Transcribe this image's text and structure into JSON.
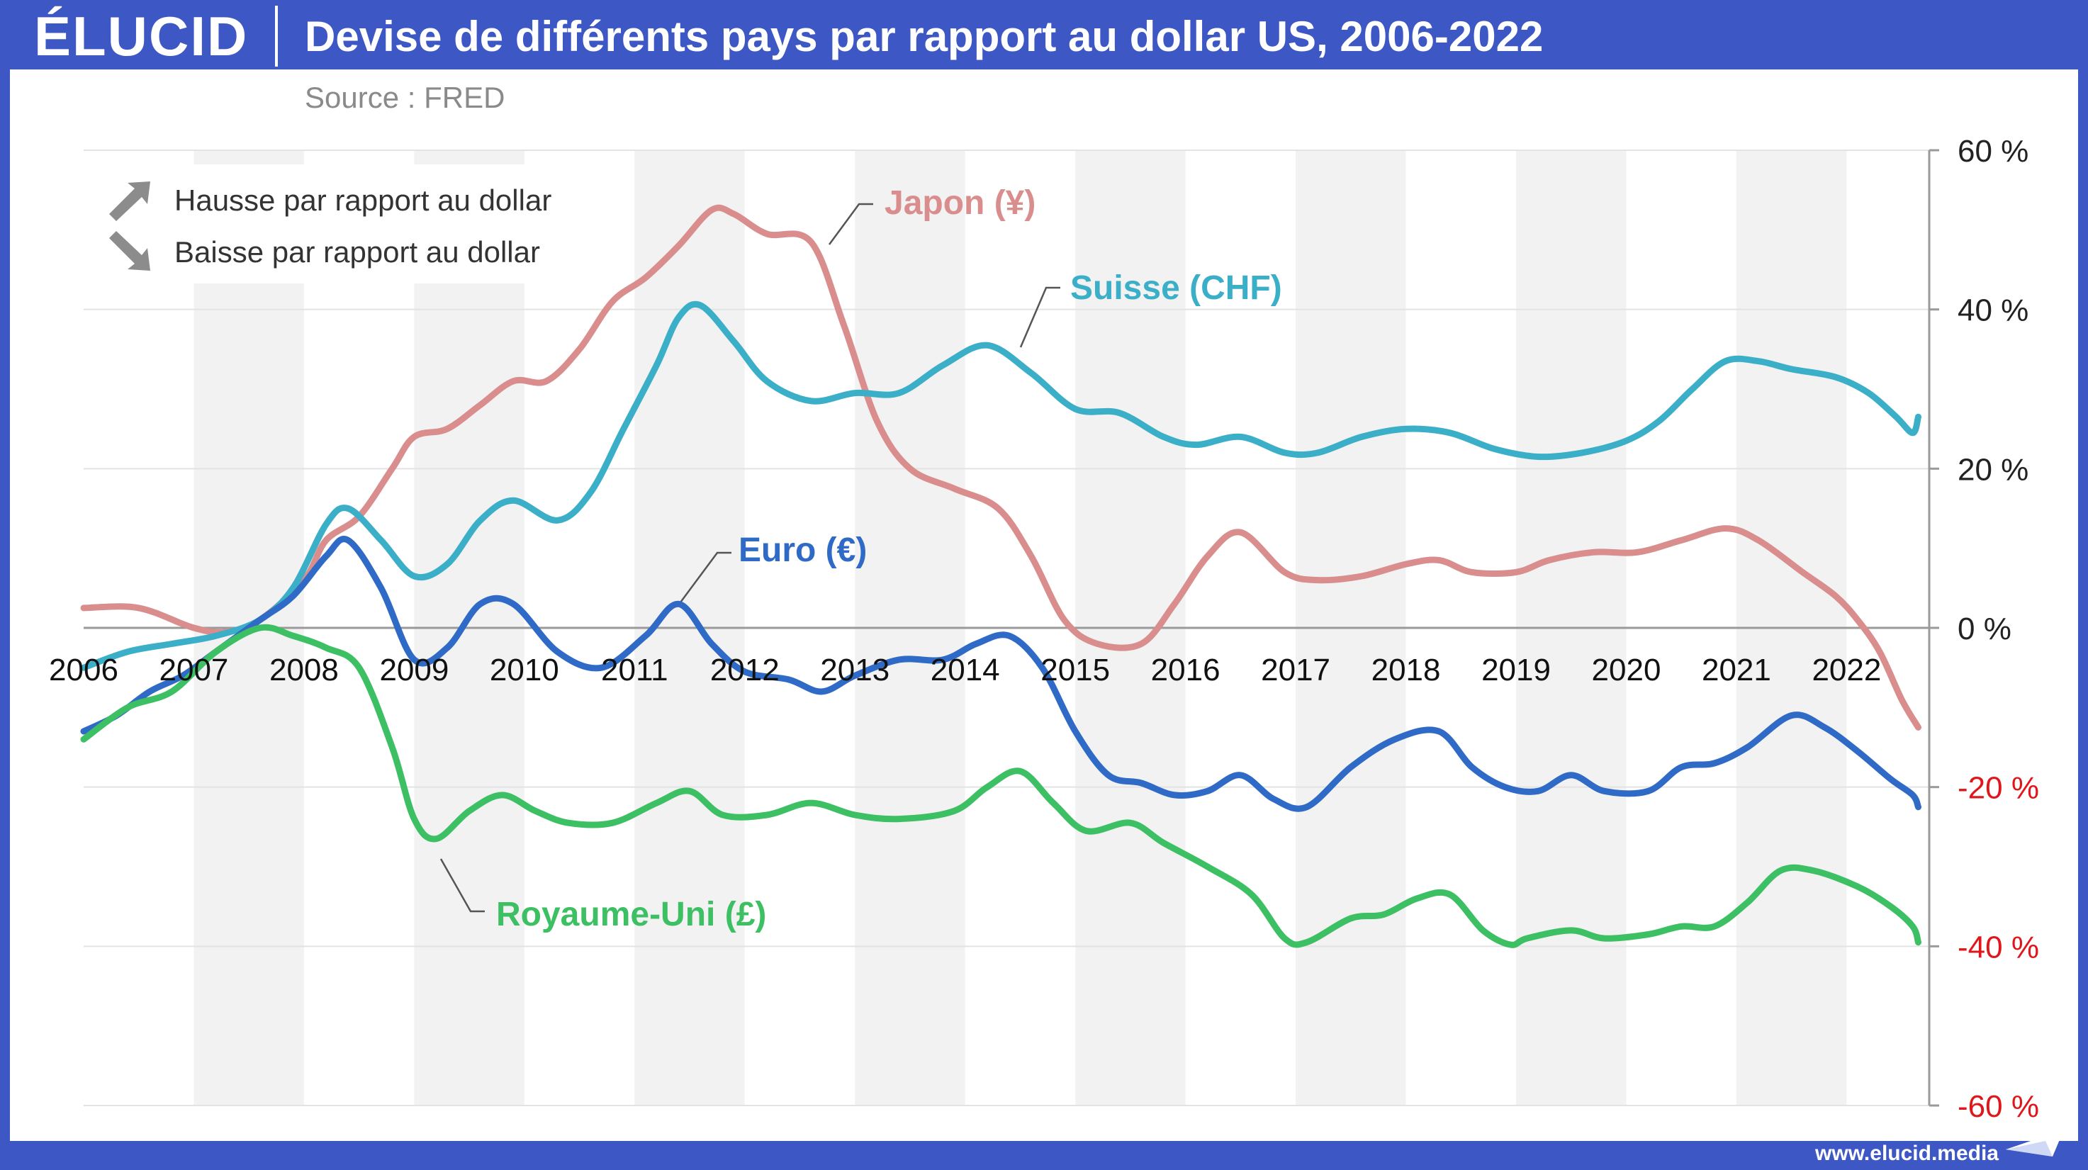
{
  "header": {
    "logo": "ÉLUCID",
    "title": "Devise de différents pays par rapport au dollar US, 2006-2022",
    "source": "Source : FRED"
  },
  "footer": {
    "url": "www.elucid.media"
  },
  "legend": {
    "up_label": "Hausse par rapport au dollar",
    "down_label": "Baisse par rapport au dollar",
    "up_icon": "arrow-up-right-icon",
    "down_icon": "arrow-down-right-icon"
  },
  "chart_data": {
    "type": "line",
    "title": "Devise de différents pays par rapport au dollar US, 2006-2022",
    "xlim": [
      2006,
      2022.75
    ],
    "ylim": [
      -60,
      60
    ],
    "x_ticks": [
      2006,
      2007,
      2008,
      2009,
      2010,
      2011,
      2012,
      2013,
      2014,
      2015,
      2016,
      2017,
      2018,
      2019,
      2020,
      2021,
      2022
    ],
    "x_tick_labels": [
      "2006",
      "2007",
      "2008",
      "2009",
      "2010",
      "2011",
      "2012",
      "2013",
      "2014",
      "2015",
      "2016",
      "2017",
      "2018",
      "2019",
      "2020",
      "2021",
      "2022"
    ],
    "y_ticks": [
      60,
      40,
      20,
      0,
      -20,
      -40,
      -60
    ],
    "y_tick_labels": [
      "60 %",
      "40 %",
      "20 %",
      "0 %",
      "-20 %",
      "-40 %",
      "-60 %"
    ],
    "y_axis_side": "right",
    "alternating_year_bands": true,
    "grid": true,
    "series": [
      {
        "name": "Japon (¥)",
        "color": "#d98d8d",
        "points": [
          [
            2006,
            2.5
          ],
          [
            2006.5,
            2.5
          ],
          [
            2007,
            0
          ],
          [
            2007.3,
            -0.5
          ],
          [
            2007.6,
            1
          ],
          [
            2008,
            6
          ],
          [
            2008.2,
            11
          ],
          [
            2008.5,
            14
          ],
          [
            2008.8,
            20
          ],
          [
            2009,
            24
          ],
          [
            2009.3,
            25
          ],
          [
            2009.6,
            28
          ],
          [
            2009.9,
            31
          ],
          [
            2010.2,
            31
          ],
          [
            2010.5,
            35
          ],
          [
            2010.8,
            41
          ],
          [
            2011.1,
            44
          ],
          [
            2011.4,
            48
          ],
          [
            2011.7,
            52.5
          ],
          [
            2011.9,
            52
          ],
          [
            2012.2,
            49.5
          ],
          [
            2012.6,
            48.5
          ],
          [
            2012.9,
            38
          ],
          [
            2013.2,
            26
          ],
          [
            2013.5,
            20
          ],
          [
            2013.9,
            17.5
          ],
          [
            2014.3,
            15
          ],
          [
            2014.6,
            9
          ],
          [
            2014.9,
            1
          ],
          [
            2015.2,
            -2
          ],
          [
            2015.6,
            -2
          ],
          [
            2015.9,
            3
          ],
          [
            2016.2,
            9
          ],
          [
            2016.5,
            12
          ],
          [
            2016.9,
            7
          ],
          [
            2017.2,
            6
          ],
          [
            2017.6,
            6.5
          ],
          [
            2018,
            8
          ],
          [
            2018.3,
            8.5
          ],
          [
            2018.6,
            7
          ],
          [
            2019,
            7
          ],
          [
            2019.3,
            8.5
          ],
          [
            2019.7,
            9.5
          ],
          [
            2020.1,
            9.5
          ],
          [
            2020.5,
            11
          ],
          [
            2020.9,
            12.5
          ],
          [
            2021.2,
            11
          ],
          [
            2021.6,
            7
          ],
          [
            2021.9,
            4
          ],
          [
            2022.1,
            1
          ],
          [
            2022.3,
            -3
          ],
          [
            2022.5,
            -9
          ],
          [
            2022.65,
            -12.5
          ]
        ]
      },
      {
        "name": "Suisse (CHF)",
        "color": "#3cafc8",
        "points": [
          [
            2006,
            -5
          ],
          [
            2006.4,
            -3
          ],
          [
            2006.8,
            -2
          ],
          [
            2007.2,
            -1
          ],
          [
            2007.6,
            1
          ],
          [
            2007.9,
            5
          ],
          [
            2008.2,
            13
          ],
          [
            2008.4,
            15
          ],
          [
            2008.7,
            11
          ],
          [
            2009,
            6.5
          ],
          [
            2009.3,
            8
          ],
          [
            2009.6,
            13.5
          ],
          [
            2009.9,
            16
          ],
          [
            2010.3,
            13.5
          ],
          [
            2010.6,
            17
          ],
          [
            2010.9,
            25
          ],
          [
            2011.2,
            33
          ],
          [
            2011.4,
            39
          ],
          [
            2011.6,
            40.5
          ],
          [
            2011.9,
            36
          ],
          [
            2012.2,
            31
          ],
          [
            2012.6,
            28.5
          ],
          [
            2013,
            29.5
          ],
          [
            2013.4,
            29.5
          ],
          [
            2013.8,
            33
          ],
          [
            2014.2,
            35.5
          ],
          [
            2014.6,
            32
          ],
          [
            2015,
            27.5
          ],
          [
            2015.4,
            27
          ],
          [
            2015.8,
            24
          ],
          [
            2016.1,
            23
          ],
          [
            2016.5,
            24
          ],
          [
            2016.9,
            22
          ],
          [
            2017.2,
            22
          ],
          [
            2017.6,
            24
          ],
          [
            2018,
            25
          ],
          [
            2018.4,
            24.5
          ],
          [
            2018.8,
            22.5
          ],
          [
            2019.2,
            21.5
          ],
          [
            2019.6,
            22
          ],
          [
            2020,
            23.5
          ],
          [
            2020.3,
            26
          ],
          [
            2020.6,
            30
          ],
          [
            2020.9,
            33.5
          ],
          [
            2021.2,
            33.5
          ],
          [
            2021.5,
            32.5
          ],
          [
            2021.9,
            31.5
          ],
          [
            2022.2,
            29.5
          ],
          [
            2022.45,
            26.5
          ],
          [
            2022.6,
            24.5
          ],
          [
            2022.65,
            26.5
          ]
        ]
      },
      {
        "name": "Euro (€)",
        "color": "#2f6bc6",
        "points": [
          [
            2006,
            -13
          ],
          [
            2006.3,
            -11
          ],
          [
            2006.6,
            -8
          ],
          [
            2006.9,
            -6
          ],
          [
            2007.2,
            -3
          ],
          [
            2007.6,
            1
          ],
          [
            2007.9,
            4
          ],
          [
            2008.2,
            9
          ],
          [
            2008.4,
            11
          ],
          [
            2008.7,
            5
          ],
          [
            2009,
            -4
          ],
          [
            2009.3,
            -2.5
          ],
          [
            2009.6,
            3
          ],
          [
            2009.9,
            3
          ],
          [
            2010.3,
            -3
          ],
          [
            2010.7,
            -5
          ],
          [
            2011.1,
            -1
          ],
          [
            2011.4,
            3
          ],
          [
            2011.7,
            -2
          ],
          [
            2012,
            -5.5
          ],
          [
            2012.4,
            -6.5
          ],
          [
            2012.7,
            -8
          ],
          [
            2013,
            -6
          ],
          [
            2013.4,
            -4
          ],
          [
            2013.8,
            -4
          ],
          [
            2014.1,
            -2
          ],
          [
            2014.4,
            -1
          ],
          [
            2014.7,
            -5
          ],
          [
            2015,
            -13
          ],
          [
            2015.3,
            -18.5
          ],
          [
            2015.6,
            -19.5
          ],
          [
            2015.9,
            -21
          ],
          [
            2016.2,
            -20.5
          ],
          [
            2016.5,
            -18.5
          ],
          [
            2016.8,
            -21.5
          ],
          [
            2017.1,
            -22.5
          ],
          [
            2017.5,
            -17.5
          ],
          [
            2017.9,
            -14
          ],
          [
            2018.3,
            -13
          ],
          [
            2018.6,
            -17.5
          ],
          [
            2018.9,
            -20
          ],
          [
            2019.2,
            -20.5
          ],
          [
            2019.5,
            -18.5
          ],
          [
            2019.8,
            -20.5
          ],
          [
            2020.2,
            -20.5
          ],
          [
            2020.5,
            -17.5
          ],
          [
            2020.8,
            -17
          ],
          [
            2021.1,
            -15
          ],
          [
            2021.5,
            -11
          ],
          [
            2021.8,
            -12.5
          ],
          [
            2022.1,
            -15.5
          ],
          [
            2022.4,
            -19
          ],
          [
            2022.6,
            -21
          ],
          [
            2022.65,
            -22.5
          ]
        ]
      },
      {
        "name": "Royaume-Uni (£)",
        "color": "#3dbf63",
        "points": [
          [
            2006,
            -14
          ],
          [
            2006.4,
            -10
          ],
          [
            2006.8,
            -8
          ],
          [
            2007.2,
            -3
          ],
          [
            2007.6,
            0
          ],
          [
            2007.9,
            -1
          ],
          [
            2008.2,
            -2.5
          ],
          [
            2008.5,
            -5
          ],
          [
            2008.8,
            -15
          ],
          [
            2009,
            -24
          ],
          [
            2009.2,
            -26.5
          ],
          [
            2009.5,
            -23
          ],
          [
            2009.8,
            -21
          ],
          [
            2010.1,
            -23
          ],
          [
            2010.4,
            -24.5
          ],
          [
            2010.8,
            -24.5
          ],
          [
            2011.2,
            -22
          ],
          [
            2011.5,
            -20.5
          ],
          [
            2011.8,
            -23.5
          ],
          [
            2012.2,
            -23.5
          ],
          [
            2012.6,
            -22
          ],
          [
            2013,
            -23.5
          ],
          [
            2013.4,
            -24
          ],
          [
            2013.9,
            -23
          ],
          [
            2014.2,
            -20
          ],
          [
            2014.5,
            -18
          ],
          [
            2014.8,
            -22
          ],
          [
            2015.1,
            -25.5
          ],
          [
            2015.5,
            -24.5
          ],
          [
            2015.8,
            -27
          ],
          [
            2016.2,
            -30
          ],
          [
            2016.6,
            -33.5
          ],
          [
            2016.9,
            -39
          ],
          [
            2017.1,
            -39.5
          ],
          [
            2017.5,
            -36.5
          ],
          [
            2017.8,
            -36
          ],
          [
            2018.1,
            -34
          ],
          [
            2018.4,
            -33.5
          ],
          [
            2018.7,
            -38
          ],
          [
            2018.95,
            -39.8
          ],
          [
            2019.1,
            -39
          ],
          [
            2019.5,
            -38
          ],
          [
            2019.8,
            -39
          ],
          [
            2020.2,
            -38.5
          ],
          [
            2020.5,
            -37.5
          ],
          [
            2020.8,
            -37.5
          ],
          [
            2021.1,
            -34.5
          ],
          [
            2021.4,
            -30.5
          ],
          [
            2021.7,
            -30.5
          ],
          [
            2022.1,
            -32.5
          ],
          [
            2022.4,
            -35
          ],
          [
            2022.6,
            -37.5
          ],
          [
            2022.65,
            -39.5
          ]
        ]
      }
    ],
    "annotations": [
      {
        "series": "Japon (¥)",
        "text": "Japon (¥)"
      },
      {
        "series": "Suisse (CHF)",
        "text": "Suisse (CHF)"
      },
      {
        "series": "Euro (€)",
        "text": "Euro (€)"
      },
      {
        "series": "Royaume-Uni (£)",
        "text": "Royaume-Uni (£)"
      }
    ]
  }
}
